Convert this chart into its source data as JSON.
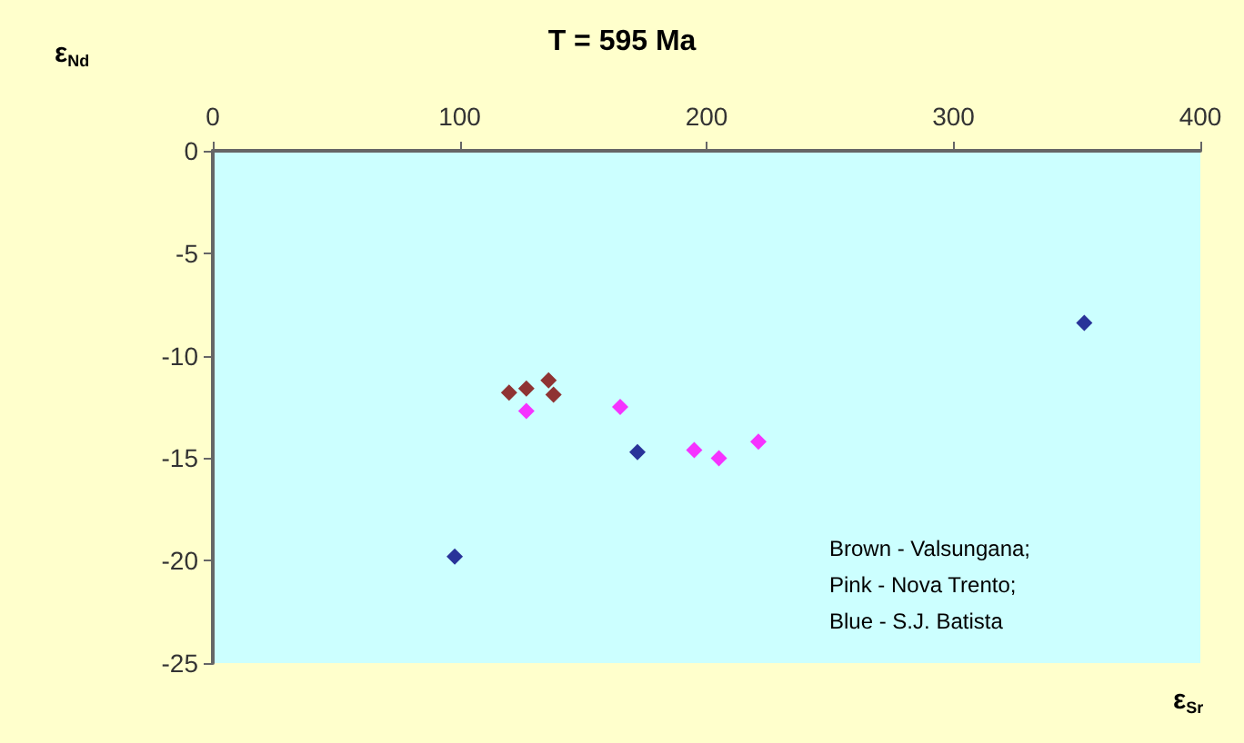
{
  "chart_data": {
    "type": "scatter",
    "title": "T = 595 Ma",
    "xlabel": "ε$_{Sr}$",
    "ylabel": "ε$_{Nd}$",
    "series": [
      {
        "color": "#800000",
        "x": [
          120,
          127,
          136,
          138
        ],
        "values": [
          -11.8,
          -11.6,
          -11.2,
          -11.9
        ]
      },
      {
        "color": "#ff00ff",
        "x": [
          127,
          165,
          195,
          205,
          221
        ],
        "values": [
          -12.7,
          -12.5,
          -14.6,
          -15.0,
          -14.2
        ]
      },
      {
        "color": "#000080",
        "x": [
          98,
          172,
          353
        ],
        "values": [
          -19.8,
          -14.7,
          -8.4
        ]
      }
    ],
    "xlim": [
      0,
      400
    ],
    "xticks": [
      0,
      100,
      200,
      300,
      400
    ],
    "ylim": [
      -25,
      0
    ],
    "yticks": [
      -25,
      -20,
      -15,
      -10,
      -5,
      0
    ],
    "marker": "diamond",
    "grid": false,
    "annotations": [
      "Brown - Valsungana;\nPink - Nova Trento;\nBlue - S.J. Batista"
    ]
  }
}
